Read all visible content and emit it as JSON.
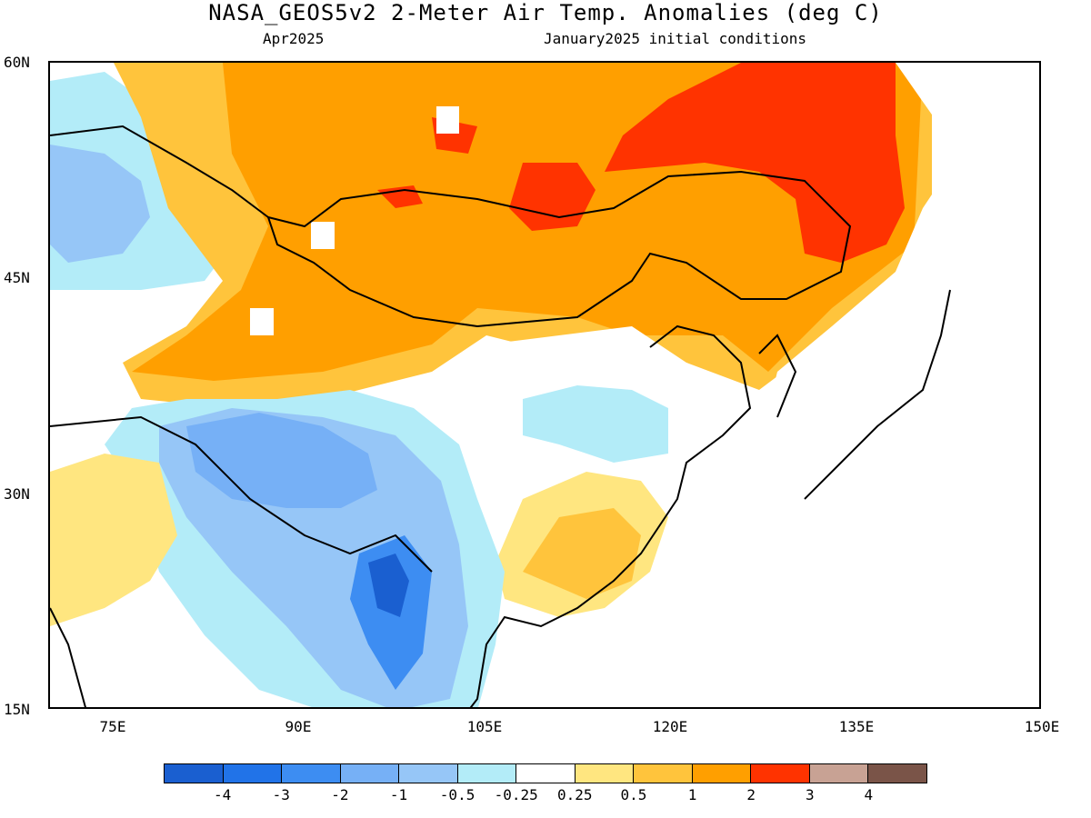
{
  "title": "NASA_GEOS5v2 2-Meter Air Temp. Anomalies (deg C)",
  "subtitle_left": "Apr2025",
  "subtitle_right": "January2025 initial conditions",
  "lat_labels": [
    "60N",
    "45N",
    "30N",
    "15N"
  ],
  "lon_labels": [
    "75E",
    "90E",
    "105E",
    "120E",
    "135E",
    "150E"
  ],
  "colorbar": {
    "colors": [
      "#1a5fd0",
      "#2173e8",
      "#3d8df2",
      "#76b0f6",
      "#96c6f7",
      "#b3ecf8",
      "#ffffff",
      "#ffe680",
      "#ffc43c",
      "#ff9f00",
      "#ff3300",
      "#c8a294",
      "#7a5448"
    ],
    "labels": [
      "-4",
      "-3",
      "-2",
      "-1",
      "-0.5",
      "-0.25",
      "0.25",
      "0.5",
      "1",
      "2",
      "3",
      "4"
    ]
  }
}
